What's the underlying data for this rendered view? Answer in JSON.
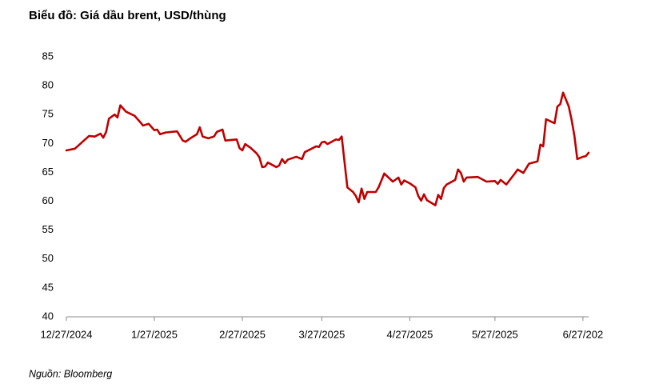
{
  "chart_data": {
    "type": "line",
    "title": "Biểu đồ: Giá dầu brent, USD/thùng",
    "source": "Nguồn: Bloomberg",
    "color": "#c00000",
    "x": [
      "2024-12-27",
      "2024-12-30",
      "2025-01-04",
      "2025-01-06",
      "2025-01-08",
      "2025-01-09",
      "2025-01-10",
      "2025-01-11",
      "2025-01-13",
      "2025-01-14",
      "2025-01-15",
      "2025-01-17",
      "2025-01-20",
      "2025-01-22",
      "2025-01-23",
      "2025-01-25",
      "2025-01-27",
      "2025-01-28",
      "2025-01-29",
      "2025-01-31",
      "2025-02-04",
      "2025-02-06",
      "2025-02-07",
      "2025-02-09",
      "2025-02-11",
      "2025-02-12",
      "2025-02-13",
      "2025-02-15",
      "2025-02-17",
      "2025-02-18",
      "2025-02-20",
      "2025-02-21",
      "2025-02-25",
      "2025-02-26",
      "2025-02-27",
      "2025-02-28",
      "2025-03-02",
      "2025-03-04",
      "2025-03-05",
      "2025-03-06",
      "2025-03-07",
      "2025-03-08",
      "2025-03-11",
      "2025-03-12",
      "2025-03-13",
      "2025-03-14",
      "2025-03-15",
      "2025-03-18",
      "2025-03-20",
      "2025-03-21",
      "2025-03-25",
      "2025-03-26",
      "2025-03-27",
      "2025-03-28",
      "2025-03-29",
      "2025-04-01",
      "2025-04-02",
      "2025-04-03",
      "2025-04-05",
      "2025-04-07",
      "2025-04-08",
      "2025-04-09",
      "2025-04-10",
      "2025-04-11",
      "2025-04-12",
      "2025-04-15",
      "2025-04-16",
      "2025-04-18",
      "2025-04-21",
      "2025-04-23",
      "2025-04-24",
      "2025-04-25",
      "2025-04-27",
      "2025-04-29",
      "2025-04-30",
      "2025-05-01",
      "2025-05-02",
      "2025-05-03",
      "2025-05-06",
      "2025-05-07",
      "2025-05-08",
      "2025-05-09",
      "2025-05-10",
      "2025-05-13",
      "2025-05-14",
      "2025-05-15",
      "2025-05-16",
      "2025-05-17",
      "2025-05-21",
      "2025-05-24",
      "2025-05-27",
      "2025-05-28",
      "2025-05-29",
      "2025-05-31",
      "2025-06-03",
      "2025-06-04",
      "2025-06-06",
      "2025-06-08",
      "2025-06-11",
      "2025-06-12",
      "2025-06-13",
      "2025-06-14",
      "2025-06-17",
      "2025-06-18",
      "2025-06-19",
      "2025-06-20",
      "2025-06-22",
      "2025-06-23",
      "2025-06-24",
      "2025-06-25",
      "2025-06-27",
      "2025-06-28",
      "2025-06-29"
    ],
    "values": [
      68.8,
      69.1,
      71.3,
      71.2,
      71.7,
      71.0,
      72.0,
      74.3,
      75.0,
      74.5,
      76.6,
      75.5,
      74.8,
      73.7,
      73.1,
      73.4,
      72.3,
      72.4,
      71.6,
      71.9,
      72.1,
      70.5,
      70.3,
      71.0,
      71.6,
      72.8,
      71.2,
      70.9,
      71.2,
      72.0,
      72.4,
      70.5,
      70.7,
      69.2,
      68.8,
      69.9,
      69.2,
      68.3,
      67.6,
      65.9,
      66.0,
      66.7,
      65.9,
      66.2,
      67.3,
      66.6,
      67.2,
      67.7,
      67.3,
      68.5,
      69.5,
      69.4,
      70.2,
      70.3,
      69.9,
      70.7,
      70.6,
      71.2,
      62.4,
      61.6,
      60.9,
      59.8,
      62.2,
      60.4,
      61.6,
      61.6,
      62.4,
      64.8,
      63.4,
      64.1,
      62.9,
      63.6,
      63.1,
      62.4,
      60.9,
      60.1,
      61.2,
      60.2,
      59.3,
      61.1,
      60.4,
      62.3,
      62.9,
      63.7,
      65.5,
      64.9,
      63.4,
      64.1,
      64.2,
      63.4,
      63.5,
      63.0,
      63.7,
      62.9,
      64.8,
      65.5,
      64.9,
      66.5,
      66.9,
      69.8,
      69.5,
      74.2,
      73.5,
      76.4,
      76.8,
      78.8,
      76.4,
      74.1,
      71.3,
      67.3,
      67.7,
      67.8,
      68.4
    ],
    "xlim": [
      "2024-12-27",
      "2025-06-29"
    ],
    "xticks": [
      {
        "value": "2024-12-27",
        "label": "12/27/2024"
      },
      {
        "value": "2025-01-27",
        "label": "1/27/2025"
      },
      {
        "value": "2025-02-27",
        "label": "2/27/2025"
      },
      {
        "value": "2025-03-27",
        "label": "3/27/2025"
      },
      {
        "value": "2025-04-27",
        "label": "4/27/2025"
      },
      {
        "value": "2025-05-27",
        "label": "5/27/2025"
      },
      {
        "value": "2025-06-27",
        "label": "6/27/202"
      }
    ],
    "ylim": [
      40,
      85
    ],
    "yticks": [
      40,
      45,
      50,
      55,
      60,
      65,
      70,
      75,
      80,
      85
    ],
    "grid": false
  }
}
